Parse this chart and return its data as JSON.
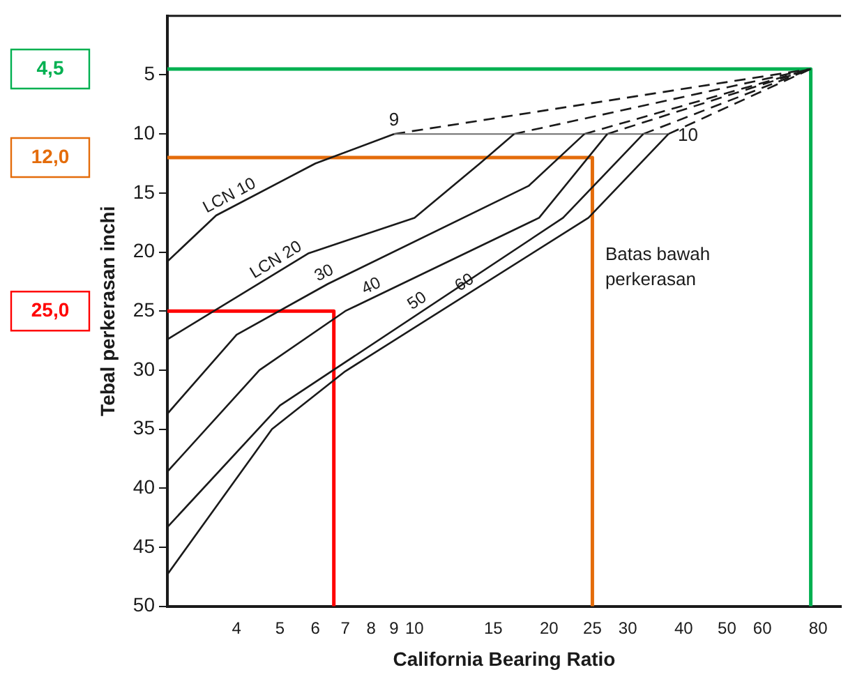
{
  "chart_data": {
    "type": "line",
    "xlabel": "California Bearing Ratio",
    "ylabel": "Tebal perkerasan inchi",
    "log": "x",
    "xlim": [
      2.8,
      90
    ],
    "xticks": [
      4,
      5,
      6,
      7,
      8,
      9,
      10,
      15,
      20,
      25,
      30,
      40,
      50,
      60,
      80
    ],
    "ylim": [
      50,
      0
    ],
    "yticks": [
      5,
      10,
      15,
      20,
      25,
      30,
      35,
      40,
      45,
      50
    ],
    "grid": false,
    "legend": "left",
    "marker": "none",
    "annotations": [
      "Batas bawah perkerasan",
      {
        "text": "9",
        "x": 9,
        "y": 10
      },
      {
        "text": "10",
        "x": 37,
        "y": 10
      }
    ],
    "series": [
      {
        "name": "LCN 10",
        "color": "#1a1a1a",
        "x": [
          2.8,
          3.6,
          6,
          9
        ],
        "values": [
          20.8,
          16.9,
          12.5,
          10
        ]
      },
      {
        "name": "LCN 20",
        "color": "#1a1a1a",
        "x": [
          2.8,
          5.8,
          10,
          14,
          16.7
        ],
        "values": [
          27.4,
          20.1,
          17.1,
          12.5,
          10
        ]
      },
      {
        "name": "30",
        "color": "#1a1a1a",
        "x": [
          2.8,
          4,
          6.4,
          18,
          24
        ],
        "values": [
          33.7,
          27,
          22.7,
          14.4,
          10
        ]
      },
      {
        "name": "40",
        "color": "#1a1a1a",
        "x": [
          2.8,
          4.5,
          7,
          19,
          27
        ],
        "values": [
          38.6,
          30,
          25,
          17.1,
          10
        ]
      },
      {
        "name": "50",
        "color": "#1a1a1a",
        "x": [
          2.8,
          5,
          21.5,
          32.5
        ],
        "values": [
          43.3,
          33,
          17.1,
          10
        ]
      },
      {
        "name": "60",
        "color": "#1a1a1a",
        "x": [
          2.8,
          4.8,
          7,
          24.5,
          37
        ],
        "values": [
          47.3,
          35,
          30.1,
          17.1,
          10
        ]
      },
      {
        "color": "#6e6e6e",
        "x": [
          9,
          37
        ],
        "values": [
          10,
          10
        ]
      },
      {
        "color": "#1a1a1a",
        "line_style": "dashed",
        "x": [
          9,
          77
        ],
        "values": [
          10,
          4.5
        ]
      },
      {
        "color": "#1a1a1a",
        "line_style": "dashed",
        "x": [
          16.7,
          77
        ],
        "values": [
          10,
          4.5
        ]
      },
      {
        "color": "#1a1a1a",
        "line_style": "dashed",
        "x": [
          24,
          77
        ],
        "values": [
          10,
          4.5
        ]
      },
      {
        "color": "#1a1a1a",
        "line_style": "dashed",
        "x": [
          27,
          77
        ],
        "values": [
          10,
          4.5
        ]
      },
      {
        "color": "#1a1a1a",
        "line_style": "dashed",
        "x": [
          32.5,
          77
        ],
        "values": [
          10,
          4.5
        ]
      },
      {
        "color": "#1a1a1a",
        "line_style": "dashed",
        "x": [
          37,
          77
        ],
        "values": [
          10,
          4.5
        ]
      },
      {
        "name": "4,5",
        "color": "#00b050",
        "x": [
          2.8,
          77,
          77
        ],
        "values": [
          4.5,
          4.5,
          50
        ]
      },
      {
        "name": "12,0",
        "color": "#e46c0a",
        "x": [
          2.8,
          25,
          25
        ],
        "values": [
          12,
          12,
          50
        ]
      },
      {
        "name": "25,0",
        "color": "#ff0000",
        "x": [
          2.8,
          6.6,
          6.6
        ],
        "values": [
          25,
          25,
          50
        ]
      }
    ]
  }
}
